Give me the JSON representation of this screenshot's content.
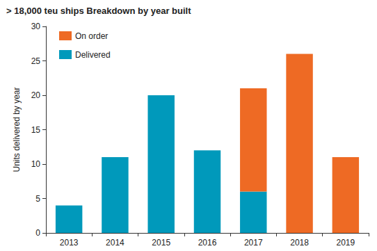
{
  "chart_data": {
    "type": "bar",
    "title": "> 18,000 teu ships Breakdown by year built",
    "y_label": "Units delivered by year",
    "categories": [
      "2013",
      "2014",
      "2015",
      "2016",
      "2017",
      "2018",
      "2019"
    ],
    "series": [
      {
        "name": "Delivered",
        "color": "#0099bb",
        "values": [
          4,
          11,
          20,
          12,
          6,
          0,
          0
        ]
      },
      {
        "name": "On order",
        "color": "#ee6a24",
        "values": [
          0,
          0,
          0,
          0,
          15,
          26,
          11
        ]
      }
    ],
    "stacked": true,
    "ylim": [
      0,
      30
    ],
    "yticks": [
      0,
      5,
      10,
      15,
      20,
      25,
      30
    ],
    "grid": false,
    "legend": "top-left"
  }
}
